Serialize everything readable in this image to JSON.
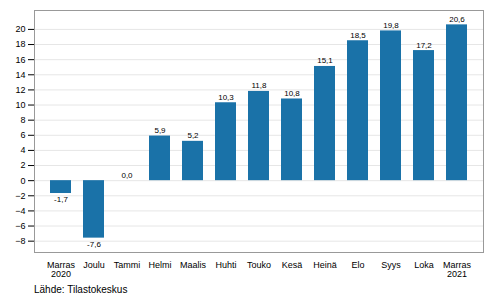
{
  "chart_data": {
    "type": "bar",
    "categories": [
      "Marras\n2020",
      "Joulu",
      "Tammi",
      "Helmi",
      "Maalis",
      "Huhti",
      "Touko",
      "Kesä",
      "Heinä",
      "Elo",
      "Syys",
      "Loka",
      "Marras\n2021"
    ],
    "values": [
      -1.7,
      -7.6,
      0.0,
      5.9,
      5.2,
      10.3,
      11.8,
      10.8,
      15.1,
      18.5,
      19.8,
      17.2,
      20.6
    ],
    "value_labels": [
      "-1,7",
      "-7,6",
      "0,0",
      "5,9",
      "5,2",
      "10,3",
      "11,8",
      "10,8",
      "15,1",
      "18,5",
      "19,8",
      "17,2",
      "20,6"
    ],
    "color": "#1a72a8",
    "ylim": [
      -9.5,
      22.5
    ],
    "yticks": [
      -8,
      -6,
      -4,
      -2,
      0,
      2,
      4,
      6,
      8,
      10,
      12,
      14,
      16,
      18,
      20
    ],
    "grid": true,
    "data_labels": true,
    "annotations": [
      "Lähde: Tilastokeskus"
    ]
  }
}
